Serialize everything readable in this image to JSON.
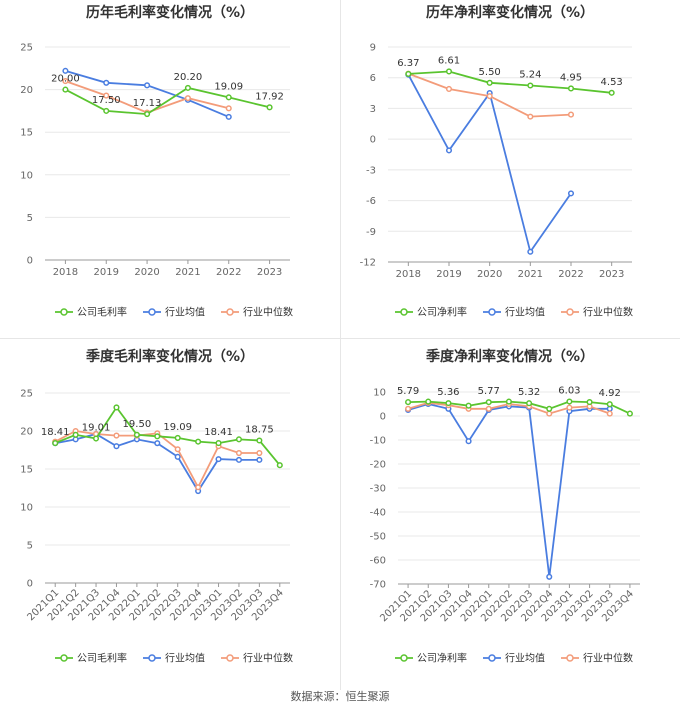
{
  "source_text": "数据来源：恒生聚源",
  "legend_labels": {
    "company_gross": "公司毛利率",
    "company_net": "公司净利率",
    "industry_avg": "行业均值",
    "industry_median": "行业中位数"
  },
  "colors": {
    "company": "#5ac42f",
    "industry_avg": "#4a7de0",
    "industry_median": "#f39c7a"
  },
  "chart_data": [
    {
      "type": "line",
      "title": "历年毛利率变化情况（%）",
      "categories": [
        "2018",
        "2019",
        "2020",
        "2021",
        "2022",
        "2023"
      ],
      "ylim": [
        0,
        25
      ],
      "yticks": [
        0,
        5,
        10,
        15,
        20,
        25
      ],
      "legend": "bottom",
      "series": [
        {
          "name": "公司毛利率",
          "values": [
            20.0,
            17.5,
            17.13,
            20.2,
            19.09,
            17.92
          ],
          "labels": [
            "20.00",
            "17.50",
            "17.13",
            "20.20",
            "19.09",
            "17.92"
          ]
        },
        {
          "name": "行业均值",
          "values": [
            22.2,
            20.8,
            20.5,
            18.8,
            16.8,
            null
          ]
        },
        {
          "name": "行业中位数",
          "values": [
            21.0,
            19.3,
            17.3,
            19.0,
            17.8,
            null
          ]
        }
      ]
    },
    {
      "type": "line",
      "title": "历年净利率变化情况（%）",
      "categories": [
        "2018",
        "2019",
        "2020",
        "2021",
        "2022",
        "2023"
      ],
      "ylim": [
        -12,
        9
      ],
      "yticks": [
        -12,
        -9,
        -6,
        -3,
        0,
        3,
        6,
        9
      ],
      "legend": "bottom",
      "series": [
        {
          "name": "公司净利率",
          "values": [
            6.37,
            6.61,
            5.5,
            5.24,
            4.95,
            4.53
          ],
          "labels": [
            "6.37",
            "6.61",
            "5.50",
            "5.24",
            "4.95",
            "4.53"
          ]
        },
        {
          "name": "行业均值",
          "values": [
            6.3,
            -1.1,
            4.5,
            -11.0,
            -5.3,
            null
          ]
        },
        {
          "name": "行业中位数",
          "values": [
            6.4,
            4.9,
            4.2,
            2.2,
            2.4,
            null
          ]
        }
      ]
    },
    {
      "type": "line",
      "title": "季度毛利率变化情况（%）",
      "categories": [
        "2021Q1",
        "2021Q2",
        "2021Q3",
        "2021Q4",
        "2022Q1",
        "2022Q2",
        "2022Q3",
        "2022Q4",
        "2023Q1",
        "2023Q2",
        "2023Q3",
        "2023Q4"
      ],
      "ylim": [
        0,
        25
      ],
      "yticks": [
        0,
        5,
        10,
        15,
        20,
        25
      ],
      "legend": "bottom",
      "series": [
        {
          "name": "公司毛利率",
          "values": [
            18.41,
            19.5,
            19.01,
            23.1,
            19.5,
            19.3,
            19.09,
            18.6,
            18.41,
            18.9,
            18.75,
            15.5
          ],
          "labels": [
            "18.41",
            null,
            "19.01",
            null,
            "19.50",
            null,
            "19.09",
            null,
            "18.41",
            null,
            "18.75",
            null
          ]
        },
        {
          "name": "行业均值",
          "values": [
            18.4,
            18.9,
            19.6,
            18.0,
            18.9,
            18.4,
            16.6,
            12.1,
            16.3,
            16.2,
            16.2,
            null
          ]
        },
        {
          "name": "行业中位数",
          "values": [
            18.6,
            20.0,
            19.6,
            19.4,
            19.4,
            19.7,
            17.6,
            12.6,
            18.0,
            17.1,
            17.1,
            null
          ]
        }
      ]
    },
    {
      "type": "line",
      "title": "季度净利率变化情况（%）",
      "categories": [
        "2021Q1",
        "2021Q2",
        "2021Q3",
        "2021Q4",
        "2022Q1",
        "2022Q2",
        "2022Q3",
        "2022Q4",
        "2023Q1",
        "2023Q2",
        "2023Q3",
        "2023Q4"
      ],
      "ylim": [
        -70,
        10
      ],
      "yticks": [
        -70,
        -60,
        -50,
        -40,
        -30,
        -20,
        -10,
        0,
        10
      ],
      "legend": "bottom",
      "series": [
        {
          "name": "公司净利率",
          "values": [
            5.79,
            6.0,
            5.36,
            4.3,
            5.77,
            6.0,
            5.32,
            3.0,
            6.03,
            5.8,
            4.92,
            1.0
          ],
          "labels": [
            "5.79",
            null,
            "5.36",
            null,
            "5.77",
            null,
            "5.32",
            null,
            "6.03",
            null,
            "4.92",
            null
          ]
        },
        {
          "name": "行业均值",
          "values": [
            2.5,
            5.0,
            3.0,
            -10.5,
            2.5,
            4.0,
            3.5,
            -67.0,
            2.0,
            3.0,
            3.0,
            null
          ]
        },
        {
          "name": "行业中位数",
          "values": [
            3.0,
            5.5,
            4.5,
            3.0,
            3.0,
            5.0,
            4.0,
            1.0,
            3.5,
            4.0,
            1.0,
            null
          ]
        }
      ]
    }
  ]
}
